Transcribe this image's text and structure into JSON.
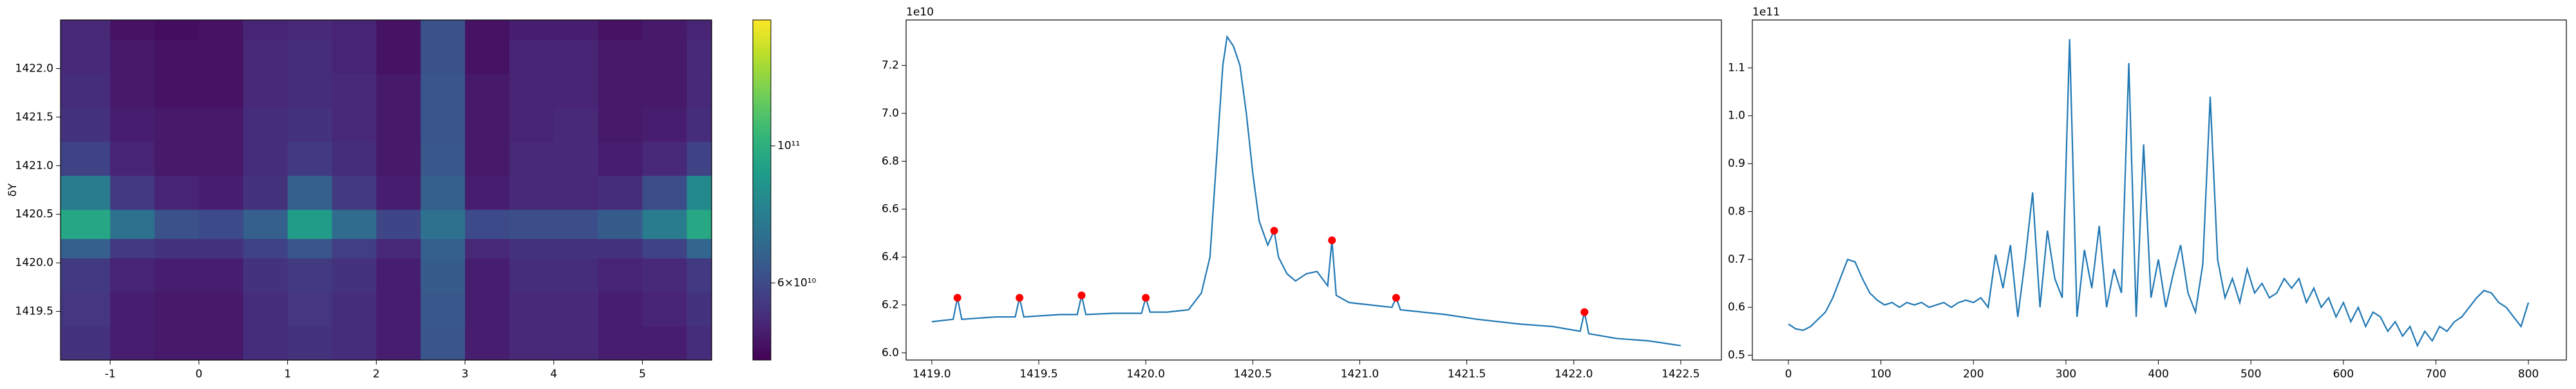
{
  "chart_data": [
    {
      "type": "heatmap",
      "ylabel": "δY",
      "colormap": "viridis",
      "xlim": [
        -1.56,
        5.78
      ],
      "ylim": [
        1419.0,
        1422.5
      ],
      "xticks": [
        -1,
        0,
        1,
        2,
        3,
        4,
        5
      ],
      "yticks": [
        1419.5,
        {
          "value": 1420.0,
          "label": "1420.0"
        },
        1420.5,
        {
          "value": 1421.0,
          "label": "1421.0"
        },
        1421.5,
        {
          "value": 1422.0,
          "label": "1422.0"
        }
      ],
      "xbins": [
        -1.56,
        -1.0,
        -0.5,
        0,
        0.5,
        1,
        1.5,
        2,
        2.5,
        3,
        3.5,
        4,
        4.5,
        5,
        5.5,
        5.78
      ],
      "ybins": [
        1419.0,
        1419.35,
        1419.7,
        1420.05,
        1420.25,
        1420.55,
        1420.9,
        1421.25,
        1421.6,
        1421.95,
        1422.3,
        1422.5
      ],
      "z": [
        [
          54000000000.0,
          50000000000.0,
          49000000000.0,
          49000000000.0,
          53000000000.0,
          54000000000.0,
          53000000000.0,
          50000000000.0,
          63000000000.0,
          50000000000.0,
          52000000000.0,
          52000000000.0,
          50000000000.0,
          50000000000.0,
          53000000000.0
        ],
        [
          55000000000.0,
          50000000000.0,
          49000000000.0,
          49000000000.0,
          53000000000.0,
          55000000000.0,
          53000000000.0,
          50000000000.0,
          64000000000.0,
          50000000000.0,
          52000000000.0,
          52000000000.0,
          50000000000.0,
          51000000000.0,
          54000000000.0
        ],
        [
          56000000000.0,
          51000000000.0,
          50000000000.0,
          50000000000.0,
          54000000000.0,
          56000000000.0,
          54000000000.0,
          50000000000.0,
          65000000000.0,
          50000000000.0,
          53000000000.0,
          53000000000.0,
          51000000000.0,
          52000000000.0,
          56000000000.0
        ],
        [
          66000000000.0,
          56000000000.0,
          54000000000.0,
          54000000000.0,
          58000000000.0,
          63000000000.0,
          57000000000.0,
          52000000000.0,
          66000000000.0,
          52000000000.0,
          54000000000.0,
          54000000000.0,
          54000000000.0,
          58000000000.0,
          68000000000.0
        ],
        [
          95000000000.0,
          72000000000.0,
          62000000000.0,
          60000000000.0,
          66000000000.0,
          90000000000.0,
          70000000000.0,
          59000000000.0,
          72000000000.0,
          60000000000.0,
          61000000000.0,
          61000000000.0,
          65000000000.0,
          76000000000.0,
          96000000000.0
        ],
        [
          76000000000.0,
          56000000000.0,
          51000000000.0,
          50000000000.0,
          54000000000.0,
          66000000000.0,
          56000000000.0,
          50000000000.0,
          66000000000.0,
          50000000000.0,
          52000000000.0,
          52000000000.0,
          53000000000.0,
          61000000000.0,
          82000000000.0
        ],
        [
          58000000000.0,
          51000000000.0,
          49000000000.0,
          49000000000.0,
          53000000000.0,
          56000000000.0,
          53000000000.0,
          49000000000.0,
          64000000000.0,
          49000000000.0,
          52000000000.0,
          52000000000.0,
          50000000000.0,
          52000000000.0,
          58000000000.0
        ],
        [
          54000000000.0,
          50000000000.0,
          49000000000.0,
          49000000000.0,
          53000000000.0,
          54000000000.0,
          52000000000.0,
          49000000000.0,
          63000000000.0,
          49000000000.0,
          51000000000.0,
          52000000000.0,
          49000000000.0,
          50000000000.0,
          53000000000.0
        ],
        [
          53000000000.0,
          49000000000.0,
          48000000000.0,
          48000000000.0,
          52000000000.0,
          53000000000.0,
          52000000000.0,
          49000000000.0,
          63000000000.0,
          49000000000.0,
          51000000000.0,
          51000000000.0,
          49000000000.0,
          49000000000.0,
          52000000000.0
        ],
        [
          52000000000.0,
          49000000000.0,
          48000000000.0,
          48000000000.0,
          52000000000.0,
          53000000000.0,
          51000000000.0,
          48000000000.0,
          62000000000.0,
          48000000000.0,
          51000000000.0,
          51000000000.0,
          49000000000.0,
          49000000000.0,
          52000000000.0
        ],
        [
          52000000000.0,
          48000000000.0,
          47000000000.0,
          48000000000.0,
          51000000000.0,
          52000000000.0,
          51000000000.0,
          48000000000.0,
          62000000000.0,
          48000000000.0,
          50000000000.0,
          50000000000.0,
          48000000000.0,
          49000000000.0,
          51000000000.0
        ]
      ],
      "colorbar": {
        "scale": "log",
        "lim": [
          45000000000.0,
          160000000000.0
        ],
        "ticks": [
          {
            "value": 60000000000.0,
            "label": "6×10¹⁰"
          },
          {
            "value": 100000000000.0,
            "label": "10¹¹"
          }
        ]
      }
    },
    {
      "type": "line",
      "offset_label": "1e10",
      "xlim": [
        1418.88,
        1422.69
      ],
      "ylim": [
        5.97,
        7.39
      ],
      "xticks": [
        {
          "value": 1419.0,
          "label": "1419.0"
        },
        1419.5,
        {
          "value": 1420.0,
          "label": "1420.0"
        },
        1420.5,
        {
          "value": 1421.0,
          "label": "1421.0"
        },
        1421.5,
        {
          "value": 1422.0,
          "label": "1422.0"
        },
        1422.5
      ],
      "yticks": [
        {
          "value": 6.0,
          "label": "6.0"
        },
        6.2,
        6.4,
        6.6,
        6.8,
        {
          "value": 7.0,
          "label": "7.0"
        },
        7.2
      ],
      "x": [
        1419.0,
        1419.1,
        1419.12,
        1419.14,
        1419.3,
        1419.39,
        1419.41,
        1419.43,
        1419.6,
        1419.68,
        1419.7,
        1419.72,
        1419.85,
        1419.98,
        1420.0,
        1420.02,
        1420.1,
        1420.2,
        1420.26,
        1420.3,
        1420.33,
        1420.36,
        1420.38,
        1420.41,
        1420.44,
        1420.47,
        1420.5,
        1420.53,
        1420.57,
        1420.6,
        1420.62,
        1420.66,
        1420.7,
        1420.75,
        1420.8,
        1420.85,
        1420.87,
        1420.89,
        1420.95,
        1421.05,
        1421.15,
        1421.17,
        1421.19,
        1421.4,
        1421.55,
        1421.75,
        1421.9,
        1422.03,
        1422.05,
        1422.07,
        1422.2,
        1422.35,
        1422.5
      ],
      "series": [
        {
          "color": "#1f77b4",
          "values": [
            6.13,
            6.14,
            6.23,
            6.14,
            6.15,
            6.15,
            6.23,
            6.15,
            6.16,
            6.16,
            6.24,
            6.16,
            6.165,
            6.165,
            6.23,
            6.17,
            6.17,
            6.18,
            6.25,
            6.4,
            6.8,
            7.2,
            7.32,
            7.28,
            7.2,
            7.0,
            6.75,
            6.55,
            6.45,
            6.51,
            6.4,
            6.33,
            6.3,
            6.33,
            6.34,
            6.28,
            6.47,
            6.24,
            6.21,
            6.2,
            6.19,
            6.23,
            6.18,
            6.16,
            6.14,
            6.12,
            6.11,
            6.09,
            6.17,
            6.08,
            6.06,
            6.05,
            6.03
          ]
        }
      ],
      "markers": {
        "color": "#ff0000",
        "x": [
          1419.12,
          1419.41,
          1419.7,
          1420.0,
          1420.6,
          1420.87,
          1421.17,
          1422.05
        ],
        "values": [
          6.23,
          6.23,
          6.24,
          6.23,
          6.51,
          6.47,
          6.23,
          6.17
        ]
      }
    },
    {
      "type": "line",
      "offset_label": "1e11",
      "xlim": [
        -39,
        841
      ],
      "ylim": [
        0.49,
        1.2
      ],
      "xticks": [
        0,
        100,
        200,
        300,
        400,
        500,
        600,
        700,
        800
      ],
      "yticks": [
        0.5,
        0.6,
        0.7,
        0.8,
        0.9,
        {
          "value": 1.0,
          "label": "1.0"
        },
        1.1
      ],
      "x": [
        0,
        8,
        16,
        24,
        32,
        40,
        48,
        56,
        64,
        72,
        80,
        88,
        96,
        104,
        112,
        120,
        128,
        136,
        144,
        152,
        160,
        168,
        176,
        184,
        192,
        200,
        208,
        216,
        224,
        232,
        240,
        248,
        256,
        264,
        272,
        280,
        288,
        296,
        304,
        312,
        320,
        328,
        336,
        344,
        352,
        360,
        368,
        376,
        384,
        392,
        400,
        408,
        416,
        424,
        432,
        440,
        448,
        456,
        464,
        472,
        480,
        488,
        496,
        504,
        512,
        520,
        528,
        536,
        544,
        552,
        560,
        568,
        576,
        584,
        592,
        600,
        608,
        616,
        624,
        632,
        640,
        648,
        656,
        664,
        672,
        680,
        688,
        696,
        704,
        712,
        720,
        728,
        736,
        744,
        752,
        760,
        768,
        776,
        784,
        792,
        800
      ],
      "series": [
        {
          "color": "#1f77b4",
          "values": [
            0.565,
            0.555,
            0.552,
            0.56,
            0.575,
            0.59,
            0.62,
            0.66,
            0.7,
            0.695,
            0.66,
            0.63,
            0.615,
            0.605,
            0.61,
            0.6,
            0.61,
            0.605,
            0.61,
            0.6,
            0.605,
            0.61,
            0.6,
            0.61,
            0.615,
            0.61,
            0.62,
            0.6,
            0.71,
            0.64,
            0.73,
            0.58,
            0.7,
            0.84,
            0.6,
            0.76,
            0.66,
            0.62,
            1.16,
            0.58,
            0.72,
            0.64,
            0.77,
            0.6,
            0.68,
            0.63,
            1.11,
            0.58,
            0.94,
            0.62,
            0.7,
            0.6,
            0.67,
            0.73,
            0.63,
            0.59,
            0.69,
            1.04,
            0.7,
            0.62,
            0.66,
            0.61,
            0.68,
            0.63,
            0.65,
            0.62,
            0.63,
            0.66,
            0.64,
            0.66,
            0.61,
            0.64,
            0.6,
            0.62,
            0.58,
            0.61,
            0.57,
            0.6,
            0.56,
            0.59,
            0.58,
            0.55,
            0.57,
            0.54,
            0.56,
            0.52,
            0.55,
            0.53,
            0.56,
            0.55,
            0.57,
            0.58,
            0.6,
            0.62,
            0.635,
            0.63,
            0.61,
            0.6,
            0.58,
            0.56,
            0.61
          ]
        }
      ]
    }
  ]
}
